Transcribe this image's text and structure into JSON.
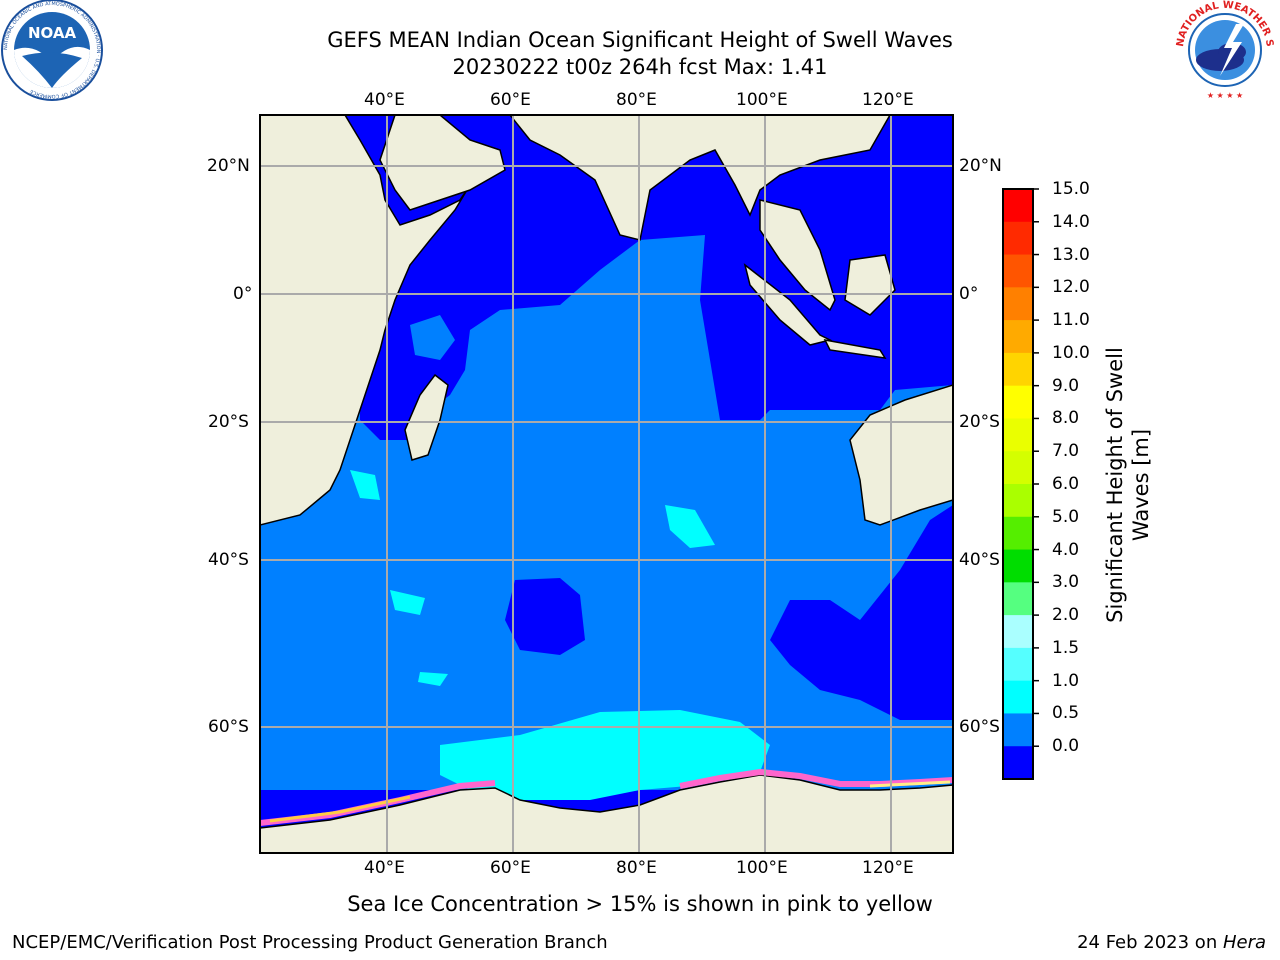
{
  "title": {
    "line1": "GEFS MEAN Indian Ocean Significant Height of Swell Waves",
    "line2": "20230222 t00z 264h fcst   Max: 1.41"
  },
  "map": {
    "lon_ticks": [
      "40°E",
      "60°E",
      "80°E",
      "100°E",
      "120°E"
    ],
    "lat_ticks_left": [
      "20°N",
      "0°",
      "20°S",
      "40°S",
      "60°S"
    ],
    "lat_ticks_right": [
      "20°N",
      "0°",
      "20°S",
      "40°S",
      "60°S"
    ]
  },
  "colorbar": {
    "label": "Significant Height of Swell Waves [m]",
    "label_line1": "Significant Height of Swell",
    "label_line2": "Waves [m]",
    "levels": [
      "15.0",
      "14.0",
      "13.0",
      "12.0",
      "11.0",
      "10.0",
      "9.0",
      "8.0",
      "7.0",
      "6.0",
      "5.0",
      "4.0",
      "3.0",
      "2.0",
      "1.5",
      "1.0",
      "0.5",
      "0.0"
    ],
    "colors": [
      "#ff0000",
      "#ff2a00",
      "#ff5500",
      "#ff8000",
      "#ffaa00",
      "#ffd400",
      "#ffff00",
      "#eaff00",
      "#d4ff00",
      "#aaff00",
      "#55ee00",
      "#00dd00",
      "#55ff80",
      "#aaffff",
      "#55ffff",
      "#00ffff",
      "#0080ff",
      "#0000ff"
    ]
  },
  "note": "Sea Ice Concentration > 15% is shown in pink to yellow",
  "footer": {
    "left": "NCEP/EMC/Verification Post Processing Product Generation Branch",
    "right_date": "24 Feb 2023 on ",
    "right_host": "Hera"
  },
  "logos": {
    "left_text": "NOAA",
    "left_ring_text": "NATIONAL OCEANIC AND ATMOSPHERIC ADMINISTRATION · U.S. DEPARTMENT OF COMMERCE",
    "right_ring_text": "NATIONAL WEATHER SERVICE"
  },
  "style": {
    "land": "#efefdc",
    "ocean_deep": "#0000ff",
    "ocean_mid": "#0080ff",
    "swell_high": "#00ffff",
    "ice": "#ff66cc",
    "grid": "#aaaaaa"
  }
}
